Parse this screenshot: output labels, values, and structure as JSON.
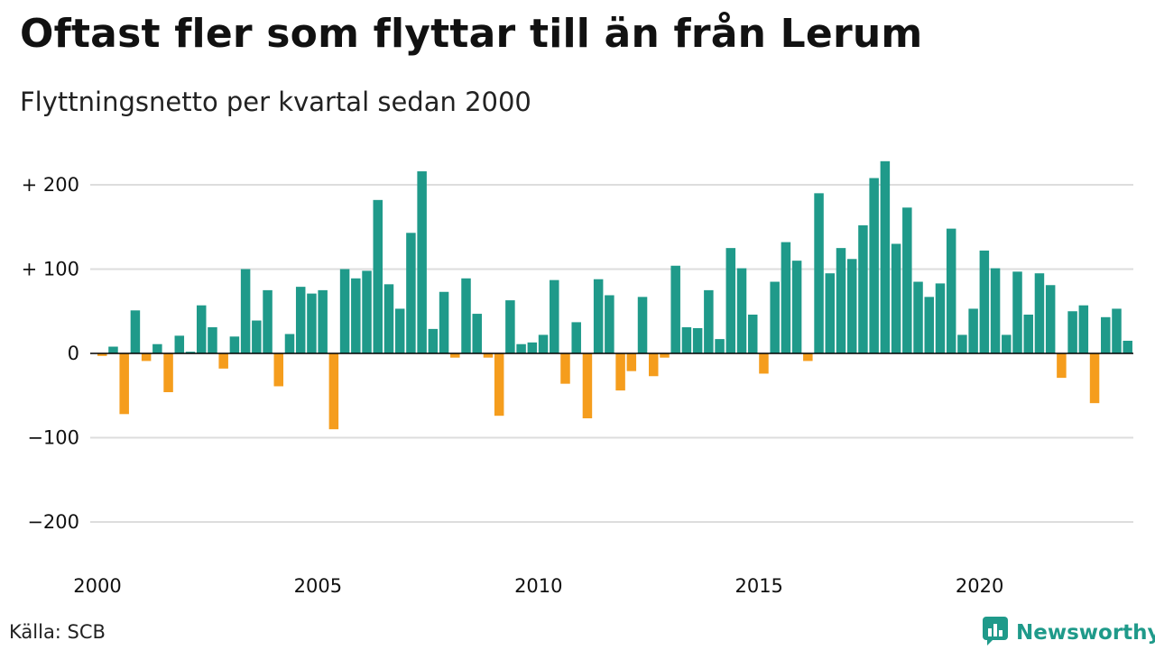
{
  "header": {
    "title": "Oftast fler som flyttar till än från Lerum",
    "subtitle": "Flyttningsnetto per kvartal sedan 2000"
  },
  "footer": {
    "source": "Källa: SCB",
    "brand": "Newsworthy",
    "brand_icon": "newsworthy-logo-icon"
  },
  "colors": {
    "positive": "#1f9a8a",
    "negative": "#f59d1d",
    "grid": "#dddddd",
    "zero_line": "#000000"
  },
  "chart_data": {
    "type": "bar",
    "title": "Flyttningsnetto per kvartal sedan 2000",
    "x_start": "2000 Q1",
    "period": "quarter",
    "ylim": [
      -250,
      240
    ],
    "y_ticks": [
      200,
      100,
      0,
      -100,
      -200
    ],
    "y_tick_labels": [
      "+ 200",
      "+ 100",
      "0",
      "−100",
      "−200"
    ],
    "x_tick_labels": [
      "2000",
      "2005",
      "2010",
      "2015",
      "2020"
    ],
    "grid": true,
    "values": [
      -3,
      8,
      -72,
      51,
      -9,
      11,
      -46,
      21,
      2,
      57,
      31,
      -18,
      20,
      100,
      39,
      75,
      -39,
      23,
      79,
      71,
      75,
      -90,
      100,
      89,
      98,
      182,
      82,
      53,
      143,
      216,
      29,
      73,
      -5,
      89,
      47,
      -5,
      -74,
      63,
      11,
      13,
      22,
      87,
      -36,
      37,
      -77,
      88,
      69,
      -44,
      -21,
      67,
      -27,
      -5,
      104,
      31,
      30,
      75,
      17,
      125,
      101,
      46,
      -24,
      85,
      132,
      110,
      -9,
      190,
      95,
      125,
      112,
      152,
      208,
      228,
      130,
      173,
      85,
      67,
      83,
      148,
      22,
      53,
      122,
      101,
      22,
      97,
      46,
      95,
      81,
      -29,
      50,
      57,
      -59,
      43,
      53,
      15
    ]
  }
}
